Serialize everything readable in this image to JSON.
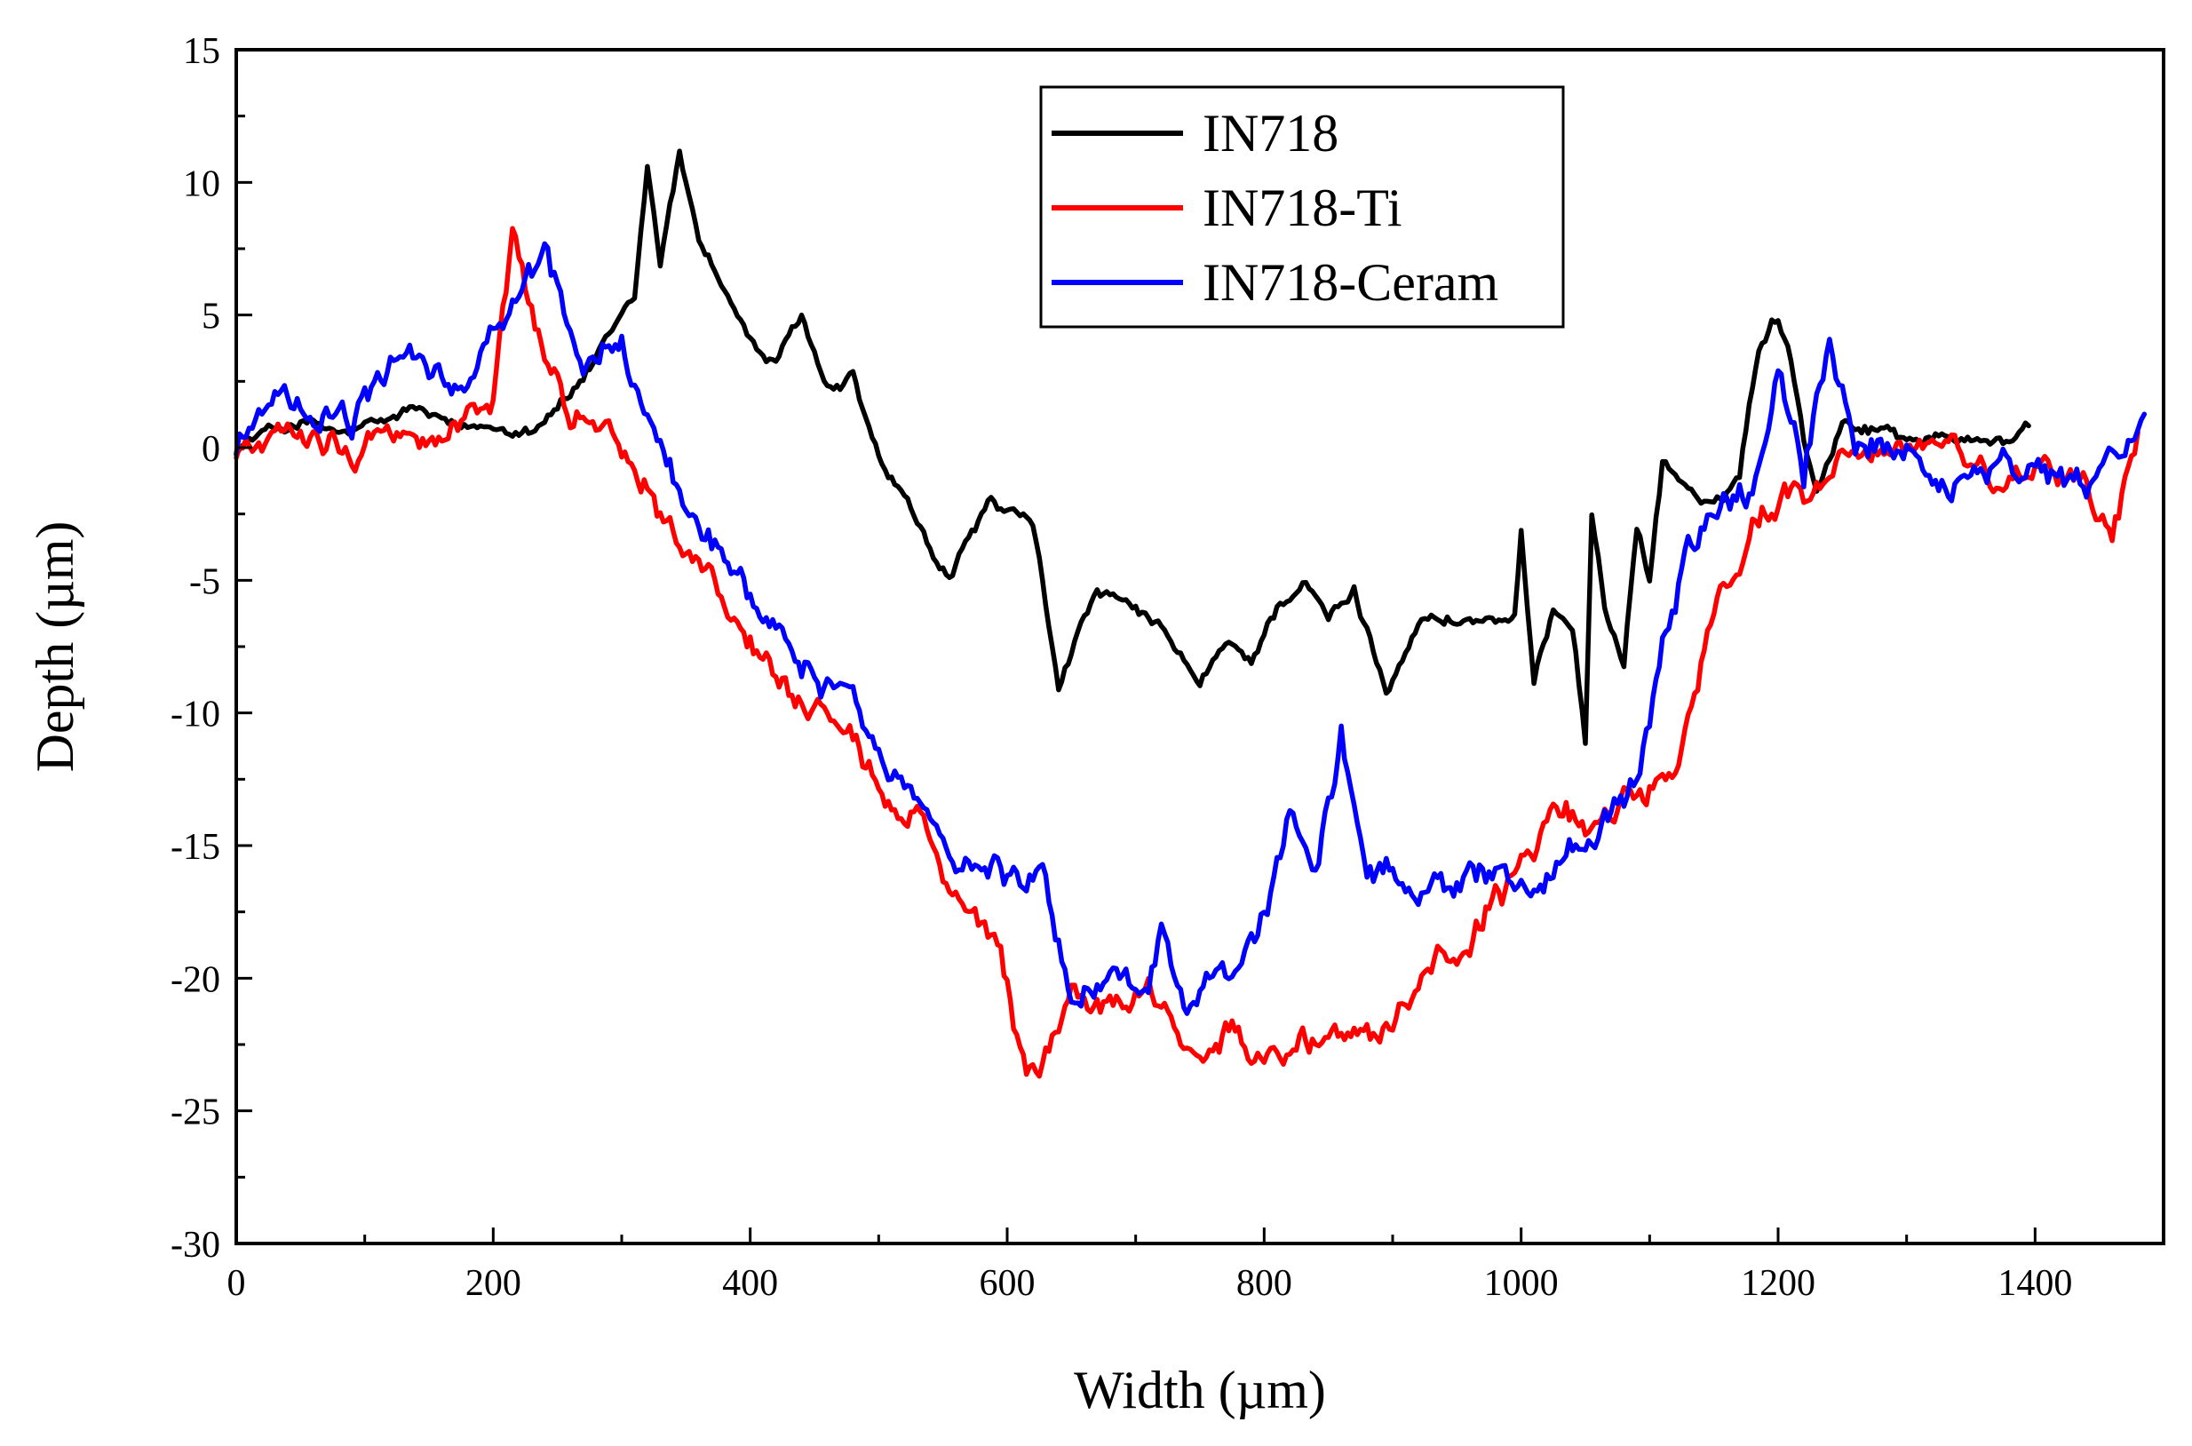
{
  "chart_data": {
    "type": "line",
    "title": "",
    "xlabel": "Width (µm)",
    "ylabel": "Depth (µm)",
    "xlim": [
      0,
      1500
    ],
    "ylim": [
      -30,
      15
    ],
    "xticks": [
      0,
      200,
      400,
      600,
      800,
      1000,
      1200,
      1400
    ],
    "xtick_labels": [
      "0",
      "200",
      "400",
      "600",
      "800",
      "1000",
      "1200",
      "1400"
    ],
    "yticks": [
      15,
      10,
      5,
      0,
      -5,
      -10,
      -15,
      -20,
      -25,
      -30
    ],
    "ytick_labels": [
      "15",
      "10",
      "5",
      "0",
      "-5",
      "-10",
      "-15",
      "-20",
      "-25",
      "-30"
    ],
    "legend_position": "top-center",
    "grid": false,
    "series": [
      {
        "name": "IN718",
        "color": "#000000",
        "noise": 0.6,
        "x": [
          0,
          20,
          50,
          80,
          110,
          140,
          170,
          200,
          230,
          260,
          290,
          310,
          320,
          330,
          345,
          360,
          380,
          400,
          420,
          440,
          460,
          480,
          500,
          520,
          540,
          555,
          570,
          585,
          600,
          620,
          640,
          650,
          670,
          690,
          710,
          730,
          750,
          770,
          790,
          810,
          830,
          850,
          870,
          895,
          920,
          945,
          970,
          995,
          1000,
          1010,
          1025,
          1040,
          1050,
          1055,
          1065,
          1080,
          1090,
          1100,
          1110,
          1130,
          1150,
          1170,
          1185,
          1200,
          1210,
          1220,
          1230,
          1250,
          1270,
          1300,
          1330,
          1360,
          1380,
          1395
        ],
        "y": [
          0,
          0.5,
          1,
          0.5,
          0.8,
          1.5,
          0.6,
          0.8,
          0.8,
          2,
          4,
          5.5,
          10.5,
          7,
          11,
          8,
          6,
          4,
          3,
          5,
          2,
          2.5,
          -0.5,
          -2,
          -4,
          -5,
          -3.5,
          -2,
          -2.5,
          -3,
          -9,
          -7.5,
          -5.5,
          -6,
          -6.5,
          -7.5,
          -9,
          -7.5,
          -8,
          -6,
          -5,
          -6.5,
          -5.5,
          -9,
          -6.5,
          -6.5,
          -6.5,
          -6.5,
          -3.5,
          -9,
          -6,
          -6.5,
          -11,
          -2.5,
          -6,
          -8,
          -3,
          -5,
          -0.5,
          -1.5,
          -2.5,
          -1,
          4,
          5,
          3.5,
          0.5,
          -1.5,
          1,
          0.8,
          0.5,
          0.3,
          0.5,
          0.2,
          0.8
        ]
      },
      {
        "name": "IN718-Ti",
        "color": "#ff0000",
        "noise": 1.3,
        "x": [
          0,
          30,
          60,
          90,
          120,
          150,
          180,
          200,
          215,
          230,
          260,
          290,
          320,
          350,
          380,
          410,
          440,
          470,
          500,
          530,
          560,
          590,
          610,
          625,
          650,
          680,
          710,
          740,
          770,
          800,
          830,
          860,
          890,
          920,
          950,
          980,
          1000,
          1030,
          1060,
          1090,
          1120,
          1150,
          1180,
          1200,
          1220,
          1250,
          1280,
          1310,
          1340,
          1370,
          1400,
          1430,
          1460,
          1480
        ],
        "y": [
          0,
          0,
          1,
          0,
          1,
          0,
          1,
          2,
          8,
          5,
          1,
          1,
          -1,
          -4,
          -6,
          -8,
          -10,
          -11,
          -13,
          -14,
          -17,
          -19,
          -23,
          -24,
          -21,
          -21,
          -21,
          -22,
          -22,
          -23,
          -23,
          -22,
          -22,
          -20,
          -19,
          -17,
          -16,
          -14,
          -14,
          -13,
          -12,
          -6,
          -3,
          -2,
          -2,
          0,
          0,
          0,
          0,
          -2,
          -1,
          -1,
          -3,
          0
        ]
      },
      {
        "name": "IN718-Ceram",
        "color": "#0000ff",
        "noise": 1.4,
        "x": [
          0,
          30,
          60,
          90,
          120,
          150,
          180,
          210,
          240,
          270,
          300,
          320,
          350,
          380,
          410,
          440,
          470,
          500,
          530,
          560,
          590,
          610,
          630,
          650,
          670,
          690,
          710,
          720,
          740,
          760,
          780,
          800,
          820,
          840,
          860,
          880,
          900,
          930,
          960,
          990,
          1020,
          1050,
          1070,
          1090,
          1110,
          1130,
          1160,
          1180,
          1200,
          1220,
          1240,
          1260,
          1290,
          1320,
          1350,
          1380,
          1410,
          1440,
          1470,
          1485
        ],
        "y": [
          0,
          2,
          1,
          1,
          3,
          3,
          2,
          5,
          7,
          3,
          4,
          1,
          -2,
          -4,
          -6,
          -8,
          -9,
          -12,
          -13,
          -15,
          -16,
          -16,
          -16,
          -21,
          -20,
          -20,
          -20,
          -18,
          -21,
          -20,
          -20,
          -18,
          -14,
          -16,
          -11,
          -16,
          -16,
          -17,
          -16,
          -16,
          -16,
          -15,
          -14,
          -13,
          -8,
          -4,
          -2,
          -2,
          3,
          -1,
          4,
          0,
          0,
          -1,
          -1,
          -1,
          -1,
          -2,
          0,
          1
        ]
      }
    ]
  }
}
